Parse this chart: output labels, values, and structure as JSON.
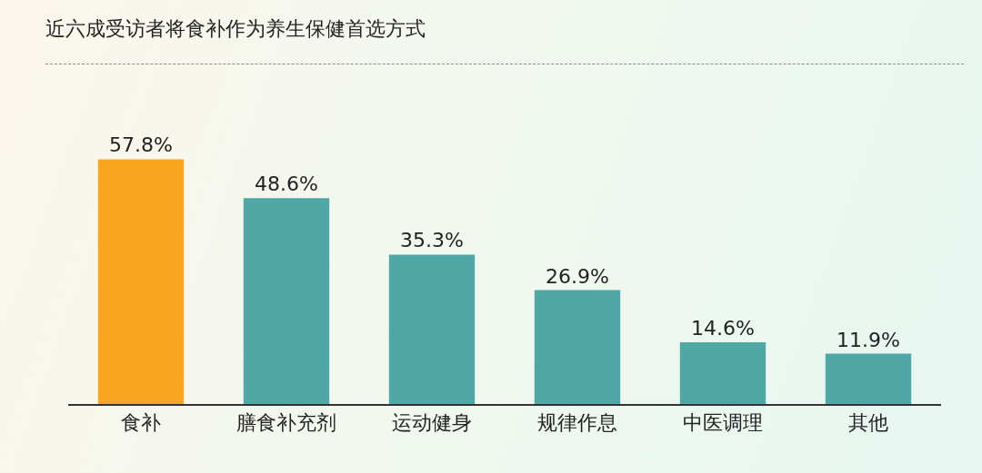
{
  "chart_data": {
    "type": "bar",
    "title": "近六成受访者将食补作为养生保健首选方式",
    "categories": [
      "食补",
      "膳食补充剂",
      "运动健身",
      "规律作息",
      "中医调理",
      "其他"
    ],
    "values": [
      57.8,
      48.6,
      35.3,
      26.9,
      14.6,
      11.9
    ],
    "colors": [
      "#f9a623",
      "#4fa8a6",
      "#4fa8a6",
      "#4fa8a6",
      "#4fa8a6",
      "#4fa8a6"
    ],
    "value_labels": [
      "57.8%",
      "48.6%",
      "35.3%",
      "26.9%",
      "14.6%",
      "11.9%"
    ],
    "legend": false
  }
}
